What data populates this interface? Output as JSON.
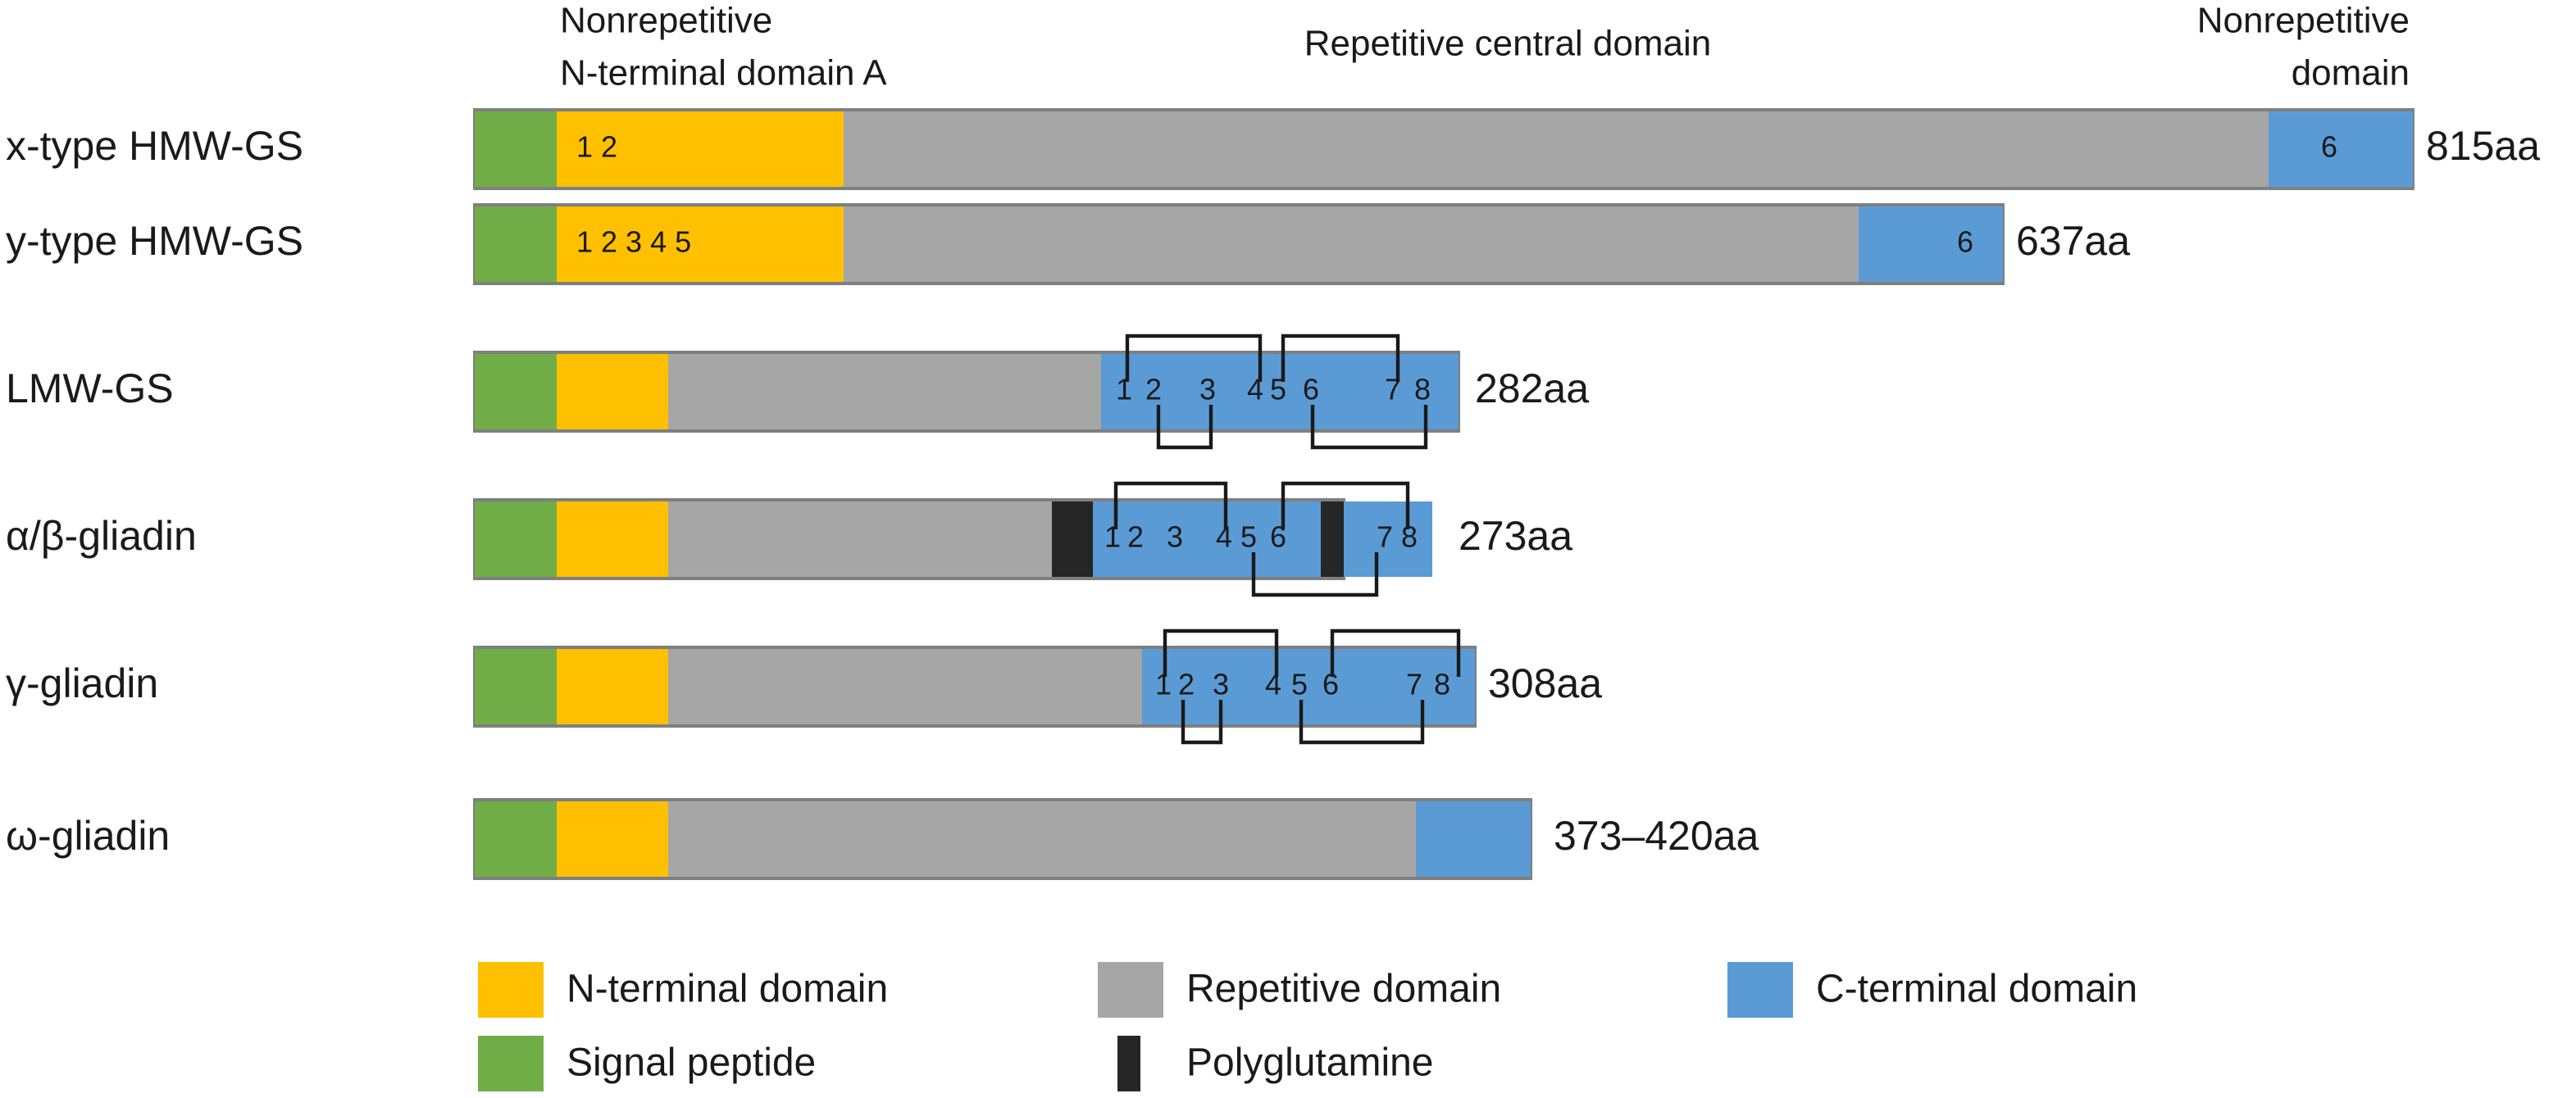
{
  "header": {
    "n_terminal": [
      "Nonrepetitive",
      "N-terminal domain A"
    ],
    "central": "Repetitive central domain",
    "c_terminal": [
      "Nonrepetitive",
      "domain"
    ]
  },
  "proteins": [
    {
      "name": "x-type HMW-GS",
      "length": "815aa",
      "labels": [
        "1 2",
        "6"
      ]
    },
    {
      "name": "y-type HMW-GS",
      "length": "637aa",
      "labels": [
        "1 2 3 4 5",
        "6"
      ]
    },
    {
      "name": "LMW-GS",
      "length": "282aa",
      "labels": [
        "1",
        "2",
        "3",
        "4",
        "5",
        "6",
        "7",
        "8"
      ]
    },
    {
      "name": "α/β-gliadin",
      "length": "273aa",
      "labels": [
        "1",
        "2",
        "3",
        "4",
        "5",
        "6",
        "7",
        "8"
      ]
    },
    {
      "name": "γ-gliadin",
      "length": "308aa",
      "labels": [
        "1",
        "2",
        "3",
        "4",
        "5",
        "6",
        "7",
        "8"
      ]
    },
    {
      "name": "ω-gliadin",
      "length": "373–420aa",
      "labels": []
    }
  ],
  "legend": [
    {
      "label": "N-terminal domain",
      "color": "#ffc000"
    },
    {
      "label": "Repetitive domain",
      "color": "#a6a6a6"
    },
    {
      "label": "C-terminal domain",
      "color": "#5b9bd5"
    },
    {
      "label": "Signal peptide",
      "color": "#70ad47"
    },
    {
      "label": "Polyglutamine",
      "color": "#262626"
    }
  ]
}
